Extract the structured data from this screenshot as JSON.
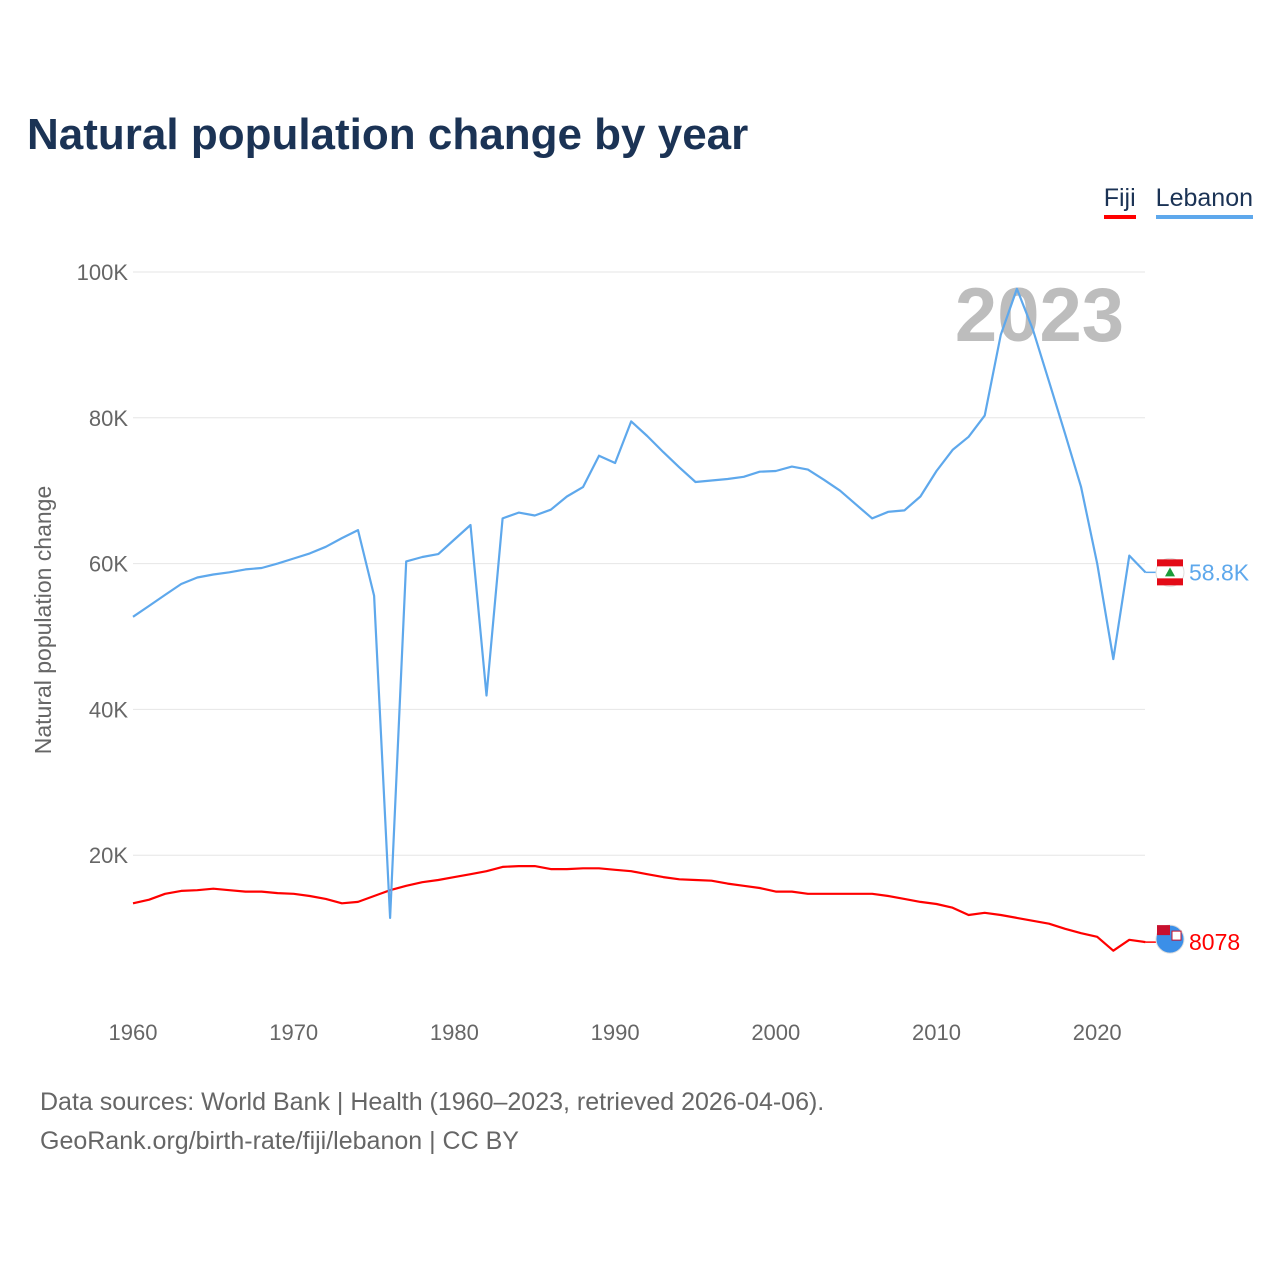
{
  "title": "Natural population change by year",
  "footer": {
    "line1": "Data sources: World Bank | Health (1960–2023, retrieved 2026-04-06).",
    "line2": "GeoRank.org/birth-rate/fiji/lebanon | CC BY"
  },
  "chart_data": {
    "type": "line",
    "title": "Natural population change by year",
    "xlabel": "",
    "ylabel": "Natural population change",
    "xlim": [
      1960,
      2023
    ],
    "ylim": [
      0,
      100000
    ],
    "x_ticks": [
      1960,
      1970,
      1980,
      1990,
      2000,
      2010,
      2020
    ],
    "x_tick_labels": [
      "1960",
      "1970",
      "1980",
      "1990",
      "2000",
      "2010",
      "2020"
    ],
    "y_ticks": [
      20000,
      40000,
      60000,
      80000,
      100000
    ],
    "y_tick_labels": [
      "20K",
      "40K",
      "60K",
      "80K",
      "100K"
    ],
    "grid": true,
    "legend_placement": "top-right",
    "year_watermark": "2023",
    "x": [
      1960,
      1961,
      1962,
      1963,
      1964,
      1965,
      1966,
      1967,
      1968,
      1969,
      1970,
      1971,
      1972,
      1973,
      1974,
      1975,
      1976,
      1977,
      1978,
      1979,
      1980,
      1981,
      1982,
      1983,
      1984,
      1985,
      1986,
      1987,
      1988,
      1989,
      1990,
      1991,
      1992,
      1993,
      1994,
      1995,
      1996,
      1997,
      1998,
      1999,
      2000,
      2001,
      2002,
      2003,
      2004,
      2005,
      2006,
      2007,
      2008,
      2009,
      2010,
      2011,
      2012,
      2013,
      2014,
      2015,
      2016,
      2017,
      2018,
      2019,
      2020,
      2021,
      2022,
      2023
    ],
    "series": [
      {
        "name": "Fiji",
        "color": "#ff0000",
        "end_label": "8078",
        "values": [
          13400,
          13900,
          14700,
          15100,
          15200,
          15400,
          15200,
          15000,
          15000,
          14800,
          14700,
          14400,
          14000,
          13400,
          13600,
          14400,
          15200,
          15800,
          16300,
          16600,
          17000,
          17400,
          17800,
          18400,
          18500,
          18500,
          18100,
          18100,
          18200,
          18200,
          18000,
          17800,
          17400,
          17000,
          16700,
          16600,
          16500,
          16100,
          15800,
          15500,
          15000,
          15000,
          14700,
          14700,
          14700,
          14700,
          14700,
          14400,
          14000,
          13600,
          13300,
          12800,
          11800,
          12100,
          11800,
          11400,
          11000,
          10600,
          9900,
          9300,
          8800,
          6900,
          8400,
          8078
        ]
      },
      {
        "name": "Lebanon",
        "color": "#5ea8ec",
        "end_label": "58.8K",
        "values": [
          52700,
          54200,
          55700,
          57200,
          58100,
          58500,
          58800,
          59200,
          59400,
          60000,
          60700,
          61400,
          62300,
          63500,
          64600,
          55600,
          11400,
          60300,
          60900,
          61300,
          63300,
          65300,
          41900,
          66200,
          67000,
          66600,
          67400,
          69200,
          70500,
          74800,
          73800,
          79500,
          77500,
          75300,
          73200,
          71200,
          71400,
          71600,
          71900,
          72600,
          72700,
          73300,
          72900,
          71500,
          70000,
          68100,
          66200,
          67100,
          67300,
          69200,
          72700,
          75600,
          77400,
          80300,
          91400,
          97700,
          92100,
          85000,
          77800,
          70500,
          60000,
          46900,
          61100,
          58800
        ]
      }
    ]
  }
}
